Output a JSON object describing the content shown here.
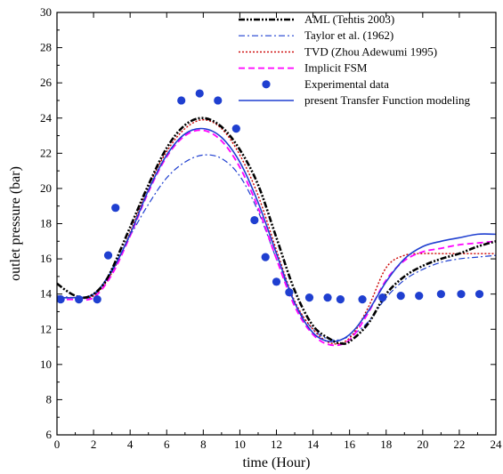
{
  "chart_data": {
    "type": "line",
    "title": "",
    "xlabel": "time (Hour)",
    "ylabel": "outlet pressure (bar)",
    "xlim": [
      0,
      24
    ],
    "ylim": [
      6,
      30
    ],
    "xticks": [
      0,
      2,
      4,
      6,
      8,
      10,
      12,
      14,
      16,
      18,
      20,
      22,
      24
    ],
    "yticks": [
      6,
      8,
      10,
      12,
      14,
      16,
      18,
      20,
      22,
      24,
      26,
      28,
      30
    ],
    "grid": false,
    "legend_position": "top-right",
    "series": [
      {
        "name": "AML (Tentis 2003)",
        "kind": "line",
        "color": "#000000",
        "dash": "dash-dot-dot",
        "x": [
          0,
          0.5,
          1,
          1.5,
          2,
          2.5,
          3,
          4,
          5,
          6,
          7,
          8,
          9,
          10,
          11,
          12,
          13,
          14,
          15,
          15.5,
          16,
          17,
          18,
          19,
          20,
          21,
          22,
          23,
          24
        ],
        "y": [
          14.6,
          14.2,
          13.9,
          13.8,
          14.0,
          14.5,
          15.4,
          17.8,
          20.2,
          22.3,
          23.6,
          24.0,
          23.5,
          22.2,
          20.2,
          17.2,
          14.2,
          12.2,
          11.4,
          11.2,
          11.3,
          12.3,
          14.0,
          15.0,
          15.6,
          16.0,
          16.3,
          16.7,
          17.0
        ]
      },
      {
        "name": "Taylor et al. (1962)",
        "kind": "line",
        "color": "#1f3fd0",
        "dash": "dash-dot",
        "x": [
          0,
          1,
          2,
          3,
          4,
          5,
          6,
          7,
          8,
          9,
          10,
          11,
          12,
          13,
          14,
          15,
          16,
          17,
          18,
          19,
          20,
          21,
          22,
          23,
          24
        ],
        "y": [
          13.9,
          13.8,
          13.9,
          15.4,
          17.3,
          19.1,
          20.6,
          21.5,
          21.9,
          21.7,
          20.7,
          18.7,
          16.0,
          13.5,
          12.0,
          11.4,
          11.6,
          12.4,
          13.8,
          14.8,
          15.4,
          15.8,
          16.0,
          16.1,
          16.2
        ]
      },
      {
        "name": "TVD (Zhou Adewumi 1995)",
        "kind": "line",
        "color": "#cc0000",
        "dash": "dot",
        "x": [
          0,
          1,
          2,
          3,
          4,
          5,
          6,
          7,
          8,
          9,
          10,
          11,
          12,
          13,
          14,
          15,
          16,
          17,
          18,
          19,
          20,
          21,
          22,
          23,
          24
        ],
        "y": [
          13.8,
          13.8,
          13.9,
          15.2,
          17.5,
          20.1,
          22.1,
          23.4,
          23.9,
          23.4,
          21.9,
          19.6,
          16.5,
          13.6,
          12.0,
          11.2,
          11.5,
          13.2,
          15.5,
          16.2,
          16.3,
          16.3,
          16.3,
          16.3,
          16.3
        ]
      },
      {
        "name": "Implicit FSM",
        "kind": "line",
        "color": "#ff00ff",
        "dash": "dash",
        "x": [
          0,
          1,
          2,
          3,
          4,
          5,
          6,
          7,
          8,
          9,
          10,
          11,
          12,
          13,
          14,
          15,
          16,
          17,
          18,
          19,
          20,
          21,
          22,
          23,
          24
        ],
        "y": [
          13.7,
          13.7,
          13.8,
          15.1,
          17.3,
          19.8,
          21.8,
          23.0,
          23.3,
          22.7,
          21.2,
          18.9,
          16.0,
          13.3,
          11.7,
          11.1,
          11.4,
          12.9,
          14.8,
          15.9,
          16.4,
          16.6,
          16.8,
          16.9,
          17.0
        ]
      },
      {
        "name": "Experimental data",
        "kind": "scatter",
        "color": "#1f3fd0",
        "x": [
          0.2,
          1.2,
          2.2,
          2.8,
          3.2,
          6.8,
          7.8,
          8.8,
          9.8,
          10.8,
          11.4,
          12.0,
          12.7,
          13.8,
          14.8,
          15.5,
          16.7,
          17.8,
          18.8,
          19.8,
          21.0,
          22.1,
          23.1
        ],
        "y": [
          13.7,
          13.7,
          13.7,
          16.2,
          18.9,
          25.0,
          25.4,
          25.0,
          23.4,
          18.2,
          16.1,
          14.7,
          14.1,
          13.8,
          13.8,
          13.7,
          13.7,
          13.8,
          13.9,
          13.9,
          14.0,
          14.0,
          14.0
        ]
      },
      {
        "name": "present Transfer Function modeling",
        "kind": "line",
        "color": "#1f3fd0",
        "dash": "solid",
        "x": [
          0,
          1,
          2,
          3,
          4,
          5,
          6,
          7,
          8,
          9,
          10,
          11,
          12,
          13,
          14,
          15,
          16,
          17,
          18,
          19,
          20,
          21,
          22,
          23,
          24
        ],
        "y": [
          13.8,
          13.8,
          14.0,
          15.3,
          17.4,
          19.9,
          21.9,
          23.1,
          23.4,
          22.9,
          21.5,
          19.2,
          16.3,
          13.5,
          11.8,
          11.3,
          11.7,
          13.0,
          14.7,
          16.0,
          16.7,
          17.0,
          17.2,
          17.4,
          17.4
        ]
      }
    ]
  }
}
